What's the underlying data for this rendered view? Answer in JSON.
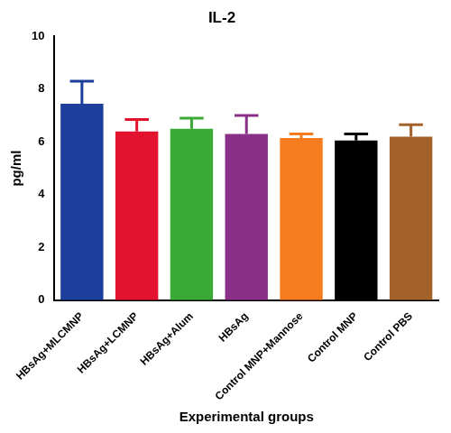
{
  "chart_data": {
    "type": "bar",
    "title": "IL-2",
    "x_label": "Experimental groups",
    "y_label": "pg/ml",
    "categories": [
      "HBsAg+MLCMNP",
      "HBsAg+LCMNP",
      "HBsAg+Alum",
      "HBsAg",
      "Control MNP+Mannose",
      "Control MNP",
      "Control PBS"
    ],
    "values": [
      7.45,
      6.4,
      6.5,
      6.3,
      6.15,
      6.05,
      6.2
    ],
    "errors": [
      0.85,
      0.45,
      0.4,
      0.7,
      0.15,
      0.25,
      0.45
    ],
    "colors": [
      "#1b3f9a",
      "#e3132f",
      "#3aa935",
      "#8b3088",
      "#f57c1f",
      "#000000",
      "#a3622a"
    ],
    "ylim": [
      0,
      10
    ],
    "yticks": [
      0,
      2,
      4,
      6,
      8,
      10
    ],
    "grid": false
  }
}
